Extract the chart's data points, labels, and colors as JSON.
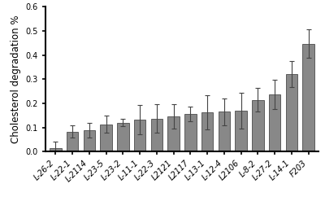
{
  "categories": [
    "L-26-2",
    "L-22-1",
    "L-2114",
    "L-23-5",
    "L-23-2",
    "L-11-1",
    "L-22-3",
    "L2121",
    "L2117",
    "L-13-1",
    "L-12-4",
    "L2106",
    "L-8-2",
    "L-27-2",
    "L-14-1",
    "F203"
  ],
  "values": [
    0.013,
    0.083,
    0.09,
    0.113,
    0.12,
    0.133,
    0.137,
    0.145,
    0.155,
    0.163,
    0.165,
    0.17,
    0.215,
    0.237,
    0.321,
    0.447
  ],
  "errors": [
    0.03,
    0.025,
    0.03,
    0.035,
    0.015,
    0.06,
    0.06,
    0.05,
    0.03,
    0.07,
    0.055,
    0.075,
    0.05,
    0.06,
    0.055,
    0.06
  ],
  "bar_color": "#888888",
  "edge_color": "#333333",
  "ylabel": "Cholesterol degradation %",
  "ylim": [
    0,
    0.6
  ],
  "yticks": [
    0.0,
    0.1,
    0.2,
    0.3,
    0.4,
    0.5,
    0.6
  ],
  "bar_width": 0.7,
  "capsize": 2,
  "ecolor": "#444444",
  "elinewidth": 0.8,
  "tick_fontsize": 7,
  "ylabel_fontsize": 8.5,
  "background_color": "#ffffff",
  "spine_color": "#000000",
  "spine_linewidth": 1.5
}
